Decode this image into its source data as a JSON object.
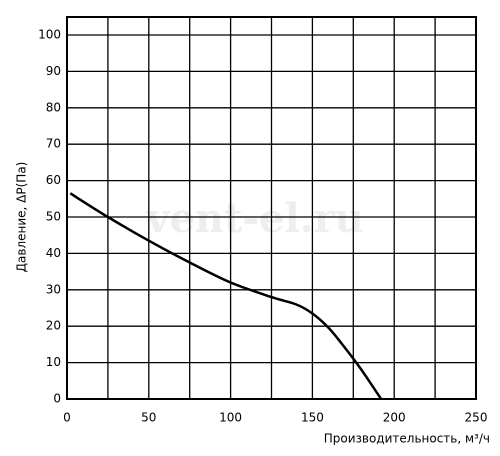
{
  "chart_data": {
    "type": "line",
    "x_label": "Производительность, м³/ч",
    "y_label": "Давление, ΔP(Па)",
    "watermark": "vent-el.ru",
    "x": [
      2,
      25,
      50,
      75,
      100,
      125,
      140,
      150,
      160,
      170,
      180,
      192
    ],
    "series": [
      {
        "color": "#000000",
        "values": [
          56.5,
          50,
          43.5,
          37.5,
          32,
          28,
          26,
          23.5,
          19.5,
          14,
          8,
          0
        ]
      }
    ],
    "xlim": [
      0,
      250
    ],
    "xticks": [
      0,
      50,
      100,
      150,
      200,
      250
    ],
    "xgrid": [
      25,
      75,
      125,
      175,
      225
    ],
    "ylim": [
      0,
      100
    ],
    "yticks": [
      0,
      10,
      20,
      30,
      40,
      50,
      60,
      70,
      80,
      90,
      100
    ],
    "grid": true
  }
}
